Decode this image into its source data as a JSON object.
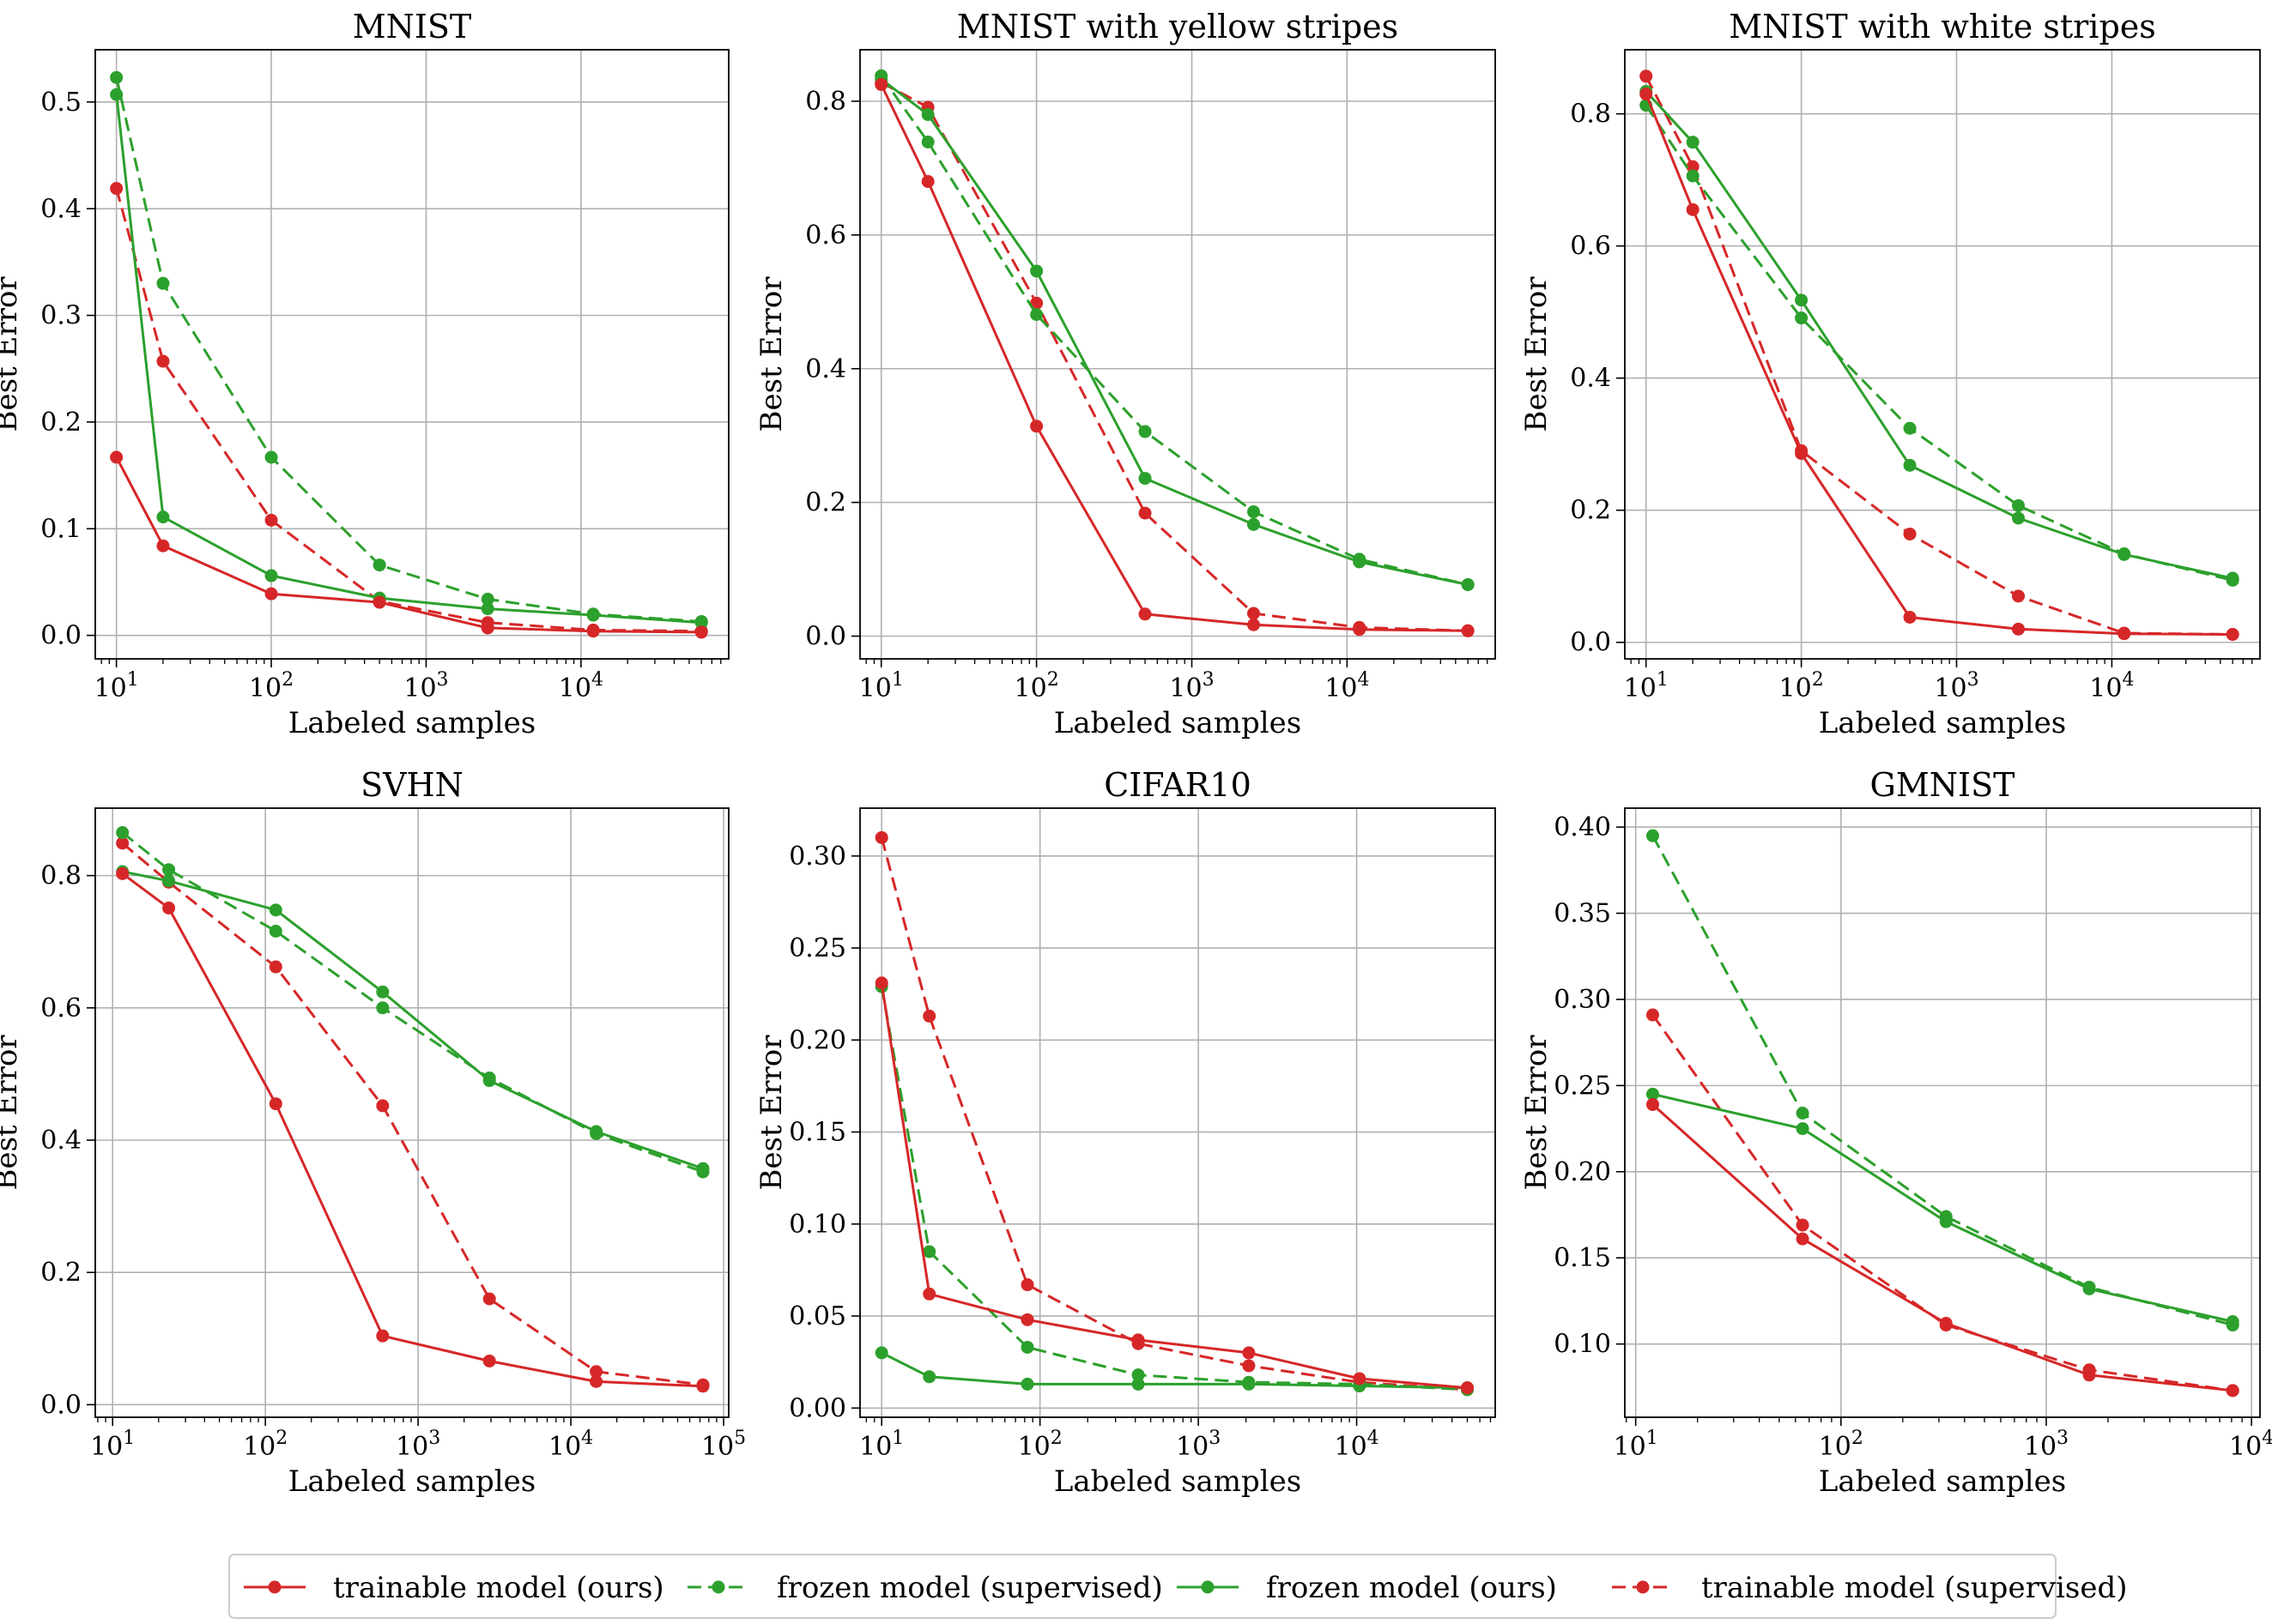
{
  "figure": {
    "legend": [
      {
        "label": "trainable model (ours)",
        "color": "#d62728",
        "dashed": false
      },
      {
        "label": "frozen model (supervised)",
        "color": "#2ca02c",
        "dashed": true
      },
      {
        "label": "frozen model (ours)",
        "color": "#2ca02c",
        "dashed": false
      },
      {
        "label": "trainable model (supervised)",
        "color": "#d62728",
        "dashed": true
      }
    ]
  },
  "chart_data": [
    {
      "type": "line",
      "title": "MNIST",
      "xlabel": "Labeled samples",
      "ylabel": "Best Error",
      "xscale": "log",
      "xlim": [
        7.3,
        90000
      ],
      "ylim": [
        -0.022,
        0.549
      ],
      "xticks": [
        {
          "v": 10,
          "e": "1"
        },
        {
          "v": 100,
          "e": "2"
        },
        {
          "v": 1000,
          "e": "3"
        },
        {
          "v": 10000,
          "e": "4"
        }
      ],
      "yticks": [
        {
          "v": 0.0,
          "t": "0.0"
        },
        {
          "v": 0.1,
          "t": "0.1"
        },
        {
          "v": 0.2,
          "t": "0.2"
        },
        {
          "v": 0.3,
          "t": "0.3"
        },
        {
          "v": 0.4,
          "t": "0.4"
        },
        {
          "v": 0.5,
          "t": "0.5"
        }
      ],
      "series": [
        {
          "name": "trainable model (ours)",
          "x": [
            10,
            20,
            100,
            500,
            2500,
            12000,
            60000
          ],
          "y": [
            0.167,
            0.084,
            0.039,
            0.031,
            0.007,
            0.004,
            0.003
          ]
        },
        {
          "name": "frozen model (supervised)",
          "x": [
            10,
            20,
            100,
            500,
            2500,
            12000,
            60000
          ],
          "y": [
            0.523,
            0.33,
            0.167,
            0.066,
            0.034,
            0.02,
            0.013
          ]
        },
        {
          "name": "frozen model (ours)",
          "x": [
            10,
            20,
            100,
            500,
            2500,
            12000,
            60000
          ],
          "y": [
            0.507,
            0.111,
            0.056,
            0.035,
            0.025,
            0.019,
            0.012
          ]
        },
        {
          "name": "trainable model (supervised)",
          "x": [
            10,
            20,
            100,
            500,
            2500,
            12000,
            60000
          ],
          "y": [
            0.419,
            0.257,
            0.108,
            0.032,
            0.012,
            0.005,
            0.004
          ]
        }
      ]
    },
    {
      "type": "line",
      "title": "MNIST with yellow stripes",
      "xlabel": "Labeled samples",
      "ylabel": "Best Error",
      "xscale": "log",
      "xlim": [
        7.3,
        90000
      ],
      "ylim": [
        -0.034,
        0.877
      ],
      "xticks": [
        {
          "v": 10,
          "e": "1"
        },
        {
          "v": 100,
          "e": "2"
        },
        {
          "v": 1000,
          "e": "3"
        },
        {
          "v": 10000,
          "e": "4"
        }
      ],
      "yticks": [
        {
          "v": 0.0,
          "t": "0.0"
        },
        {
          "v": 0.2,
          "t": "0.2"
        },
        {
          "v": 0.4,
          "t": "0.4"
        },
        {
          "v": 0.6,
          "t": "0.6"
        },
        {
          "v": 0.8,
          "t": "0.8"
        }
      ],
      "series": [
        {
          "name": "trainable model (ours)",
          "x": [
            10,
            20,
            100,
            500,
            2500,
            12000,
            60000
          ],
          "y": [
            0.825,
            0.68,
            0.314,
            0.033,
            0.017,
            0.01,
            0.008
          ]
        },
        {
          "name": "frozen model (supervised)",
          "x": [
            10,
            20,
            100,
            500,
            2500,
            12000,
            60000
          ],
          "y": [
            0.838,
            0.739,
            0.481,
            0.306,
            0.186,
            0.115,
            0.077
          ]
        },
        {
          "name": "frozen model (ours)",
          "x": [
            10,
            20,
            100,
            500,
            2500,
            12000,
            60000
          ],
          "y": [
            0.833,
            0.78,
            0.546,
            0.236,
            0.167,
            0.111,
            0.077
          ]
        },
        {
          "name": "trainable model (supervised)",
          "x": [
            10,
            20,
            100,
            500,
            2500,
            12000,
            60000
          ],
          "y": [
            0.828,
            0.791,
            0.498,
            0.184,
            0.034,
            0.013,
            0.008
          ]
        }
      ]
    },
    {
      "type": "line",
      "title": "MNIST with white stripes",
      "xlabel": "Labeled samples",
      "ylabel": "Best Error",
      "xscale": "log",
      "xlim": [
        7.3,
        90000
      ],
      "ylim": [
        -0.025,
        0.897
      ],
      "xticks": [
        {
          "v": 10,
          "e": "1"
        },
        {
          "v": 100,
          "e": "2"
        },
        {
          "v": 1000,
          "e": "3"
        },
        {
          "v": 10000,
          "e": "4"
        }
      ],
      "yticks": [
        {
          "v": 0.0,
          "t": "0.0"
        },
        {
          "v": 0.2,
          "t": "0.2"
        },
        {
          "v": 0.4,
          "t": "0.4"
        },
        {
          "v": 0.6,
          "t": "0.6"
        },
        {
          "v": 0.8,
          "t": "0.8"
        }
      ],
      "series": [
        {
          "name": "trainable model (ours)",
          "x": [
            10,
            20,
            100,
            500,
            2500,
            12000,
            60000
          ],
          "y": [
            0.83,
            0.655,
            0.286,
            0.038,
            0.02,
            0.013,
            0.012
          ]
        },
        {
          "name": "frozen model (supervised)",
          "x": [
            10,
            20,
            100,
            500,
            2500,
            12000,
            60000
          ],
          "y": [
            0.813,
            0.706,
            0.491,
            0.324,
            0.207,
            0.134,
            0.094
          ]
        },
        {
          "name": "frozen model (ours)",
          "x": [
            10,
            20,
            100,
            500,
            2500,
            12000,
            60000
          ],
          "y": [
            0.834,
            0.757,
            0.518,
            0.268,
            0.188,
            0.133,
            0.097
          ]
        },
        {
          "name": "trainable model (supervised)",
          "x": [
            10,
            20,
            100,
            500,
            2500,
            12000,
            60000
          ],
          "y": [
            0.857,
            0.72,
            0.29,
            0.164,
            0.07,
            0.014,
            0.012
          ]
        }
      ]
    },
    {
      "type": "line",
      "title": "SVHN",
      "xlabel": "Labeled samples",
      "ylabel": "Best Error",
      "xscale": "log",
      "xlim": [
        7.7,
        108000
      ],
      "ylim": [
        -0.019,
        0.902
      ],
      "xticks": [
        {
          "v": 10,
          "e": "1"
        },
        {
          "v": 100,
          "e": "2"
        },
        {
          "v": 1000,
          "e": "3"
        },
        {
          "v": 10000,
          "e": "4"
        },
        {
          "v": 100000,
          "e": "5"
        }
      ],
      "yticks": [
        {
          "v": 0.0,
          "t": "0.0"
        },
        {
          "v": 0.2,
          "t": "0.2"
        },
        {
          "v": 0.4,
          "t": "0.4"
        },
        {
          "v": 0.6,
          "t": "0.6"
        },
        {
          "v": 0.8,
          "t": "0.8"
        }
      ],
      "series": [
        {
          "name": "trainable model (ours)",
          "x": [
            11.6,
            23.3,
            117,
            586,
            2930,
            14649,
            73257
          ],
          "y": [
            0.803,
            0.751,
            0.455,
            0.104,
            0.066,
            0.035,
            0.028
          ]
        },
        {
          "name": "frozen model (supervised)",
          "x": [
            11.6,
            23.3,
            117,
            586,
            2930,
            14649,
            73257
          ],
          "y": [
            0.865,
            0.809,
            0.716,
            0.6,
            0.494,
            0.41,
            0.352
          ]
        },
        {
          "name": "frozen model (ours)",
          "x": [
            11.6,
            23.3,
            117,
            586,
            2930,
            14649,
            73257
          ],
          "y": [
            0.806,
            0.792,
            0.748,
            0.624,
            0.49,
            0.413,
            0.357
          ]
        },
        {
          "name": "trainable model (supervised)",
          "x": [
            11.6,
            23.3,
            117,
            586,
            2930,
            14649,
            73257
          ],
          "y": [
            0.849,
            0.79,
            0.662,
            0.452,
            0.16,
            0.05,
            0.03
          ]
        }
      ]
    },
    {
      "type": "line",
      "title": "CIFAR10",
      "xlabel": "Labeled samples",
      "ylabel": "Best Error",
      "xscale": "log",
      "xlim": [
        7.3,
        75000
      ],
      "ylim": [
        -0.005,
        0.326
      ],
      "xticks": [
        {
          "v": 10,
          "e": "1"
        },
        {
          "v": 100,
          "e": "2"
        },
        {
          "v": 1000,
          "e": "3"
        },
        {
          "v": 10000,
          "e": "4"
        }
      ],
      "yticks": [
        {
          "v": 0.0,
          "t": "0.00"
        },
        {
          "v": 0.05,
          "t": "0.05"
        },
        {
          "v": 0.1,
          "t": "0.10"
        },
        {
          "v": 0.15,
          "t": "0.15"
        },
        {
          "v": 0.2,
          "t": "0.20"
        },
        {
          "v": 0.25,
          "t": "0.25"
        },
        {
          "v": 0.3,
          "t": "0.30"
        }
      ],
      "series": [
        {
          "name": "trainable model (ours)",
          "x": [
            10,
            20,
            83.3,
            417,
            2083,
            10417,
            50000
          ],
          "y": [
            0.231,
            0.062,
            0.048,
            0.037,
            0.03,
            0.016,
            0.011
          ]
        },
        {
          "name": "frozen model (supervised)",
          "x": [
            10,
            20,
            83.3,
            417,
            2083,
            10417,
            50000
          ],
          "y": [
            0.229,
            0.085,
            0.033,
            0.018,
            0.014,
            0.013,
            0.01
          ]
        },
        {
          "name": "frozen model (ours)",
          "x": [
            10,
            20,
            83.3,
            417,
            2083,
            10417,
            50000
          ],
          "y": [
            0.03,
            0.017,
            0.013,
            0.013,
            0.013,
            0.012,
            0.011
          ]
        },
        {
          "name": "trainable model (supervised)",
          "x": [
            10,
            20,
            83.3,
            417,
            2083,
            10417,
            50000
          ],
          "y": [
            0.31,
            0.213,
            0.067,
            0.035,
            0.023,
            0.014,
            0.01
          ]
        }
      ]
    },
    {
      "type": "line",
      "title": "GMNIST",
      "xlabel": "Labeled samples",
      "ylabel": "Best Error",
      "xscale": "log",
      "xlim": [
        8.85,
        11000
      ],
      "ylim": [
        0.0575,
        0.411
      ],
      "xticks": [
        {
          "v": 10,
          "e": "1"
        },
        {
          "v": 100,
          "e": "2"
        },
        {
          "v": 1000,
          "e": "3"
        },
        {
          "v": 10000,
          "e": "4"
        }
      ],
      "yticks": [
        {
          "v": 0.1,
          "t": "0.10"
        },
        {
          "v": 0.15,
          "t": "0.15"
        },
        {
          "v": 0.2,
          "t": "0.20"
        },
        {
          "v": 0.25,
          "t": "0.25"
        },
        {
          "v": 0.3,
          "t": "0.30"
        },
        {
          "v": 0.35,
          "t": "0.35"
        },
        {
          "v": 0.4,
          "t": "0.40"
        }
      ],
      "series": [
        {
          "name": "trainable model (ours)",
          "x": [
            12.1,
            65,
            325,
            1620,
            8100
          ],
          "y": [
            0.239,
            0.161,
            0.112,
            0.082,
            0.073
          ]
        },
        {
          "name": "frozen model (supervised)",
          "x": [
            12.1,
            65,
            325,
            1620,
            8100
          ],
          "y": [
            0.395,
            0.234,
            0.174,
            0.133,
            0.111
          ]
        },
        {
          "name": "frozen model (ours)",
          "x": [
            12.1,
            65,
            325,
            1620,
            8100
          ],
          "y": [
            0.245,
            0.225,
            0.171,
            0.132,
            0.113
          ]
        },
        {
          "name": "trainable model (supervised)",
          "x": [
            12.1,
            65,
            325,
            1620,
            8100
          ],
          "y": [
            0.291,
            0.169,
            0.111,
            0.085,
            0.073
          ]
        }
      ]
    }
  ]
}
